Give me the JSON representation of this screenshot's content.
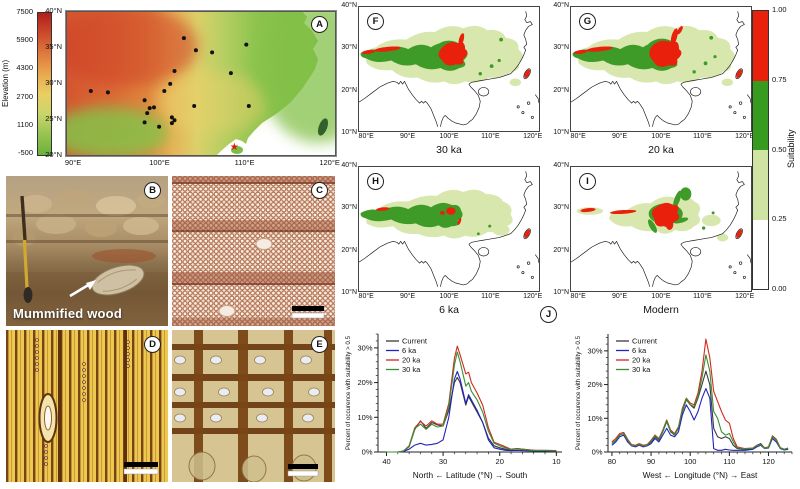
{
  "letters": {
    "a": "A",
    "b": "B",
    "c": "C",
    "d": "D",
    "e": "E",
    "j": "J"
  },
  "panel_a": {
    "colorbar": {
      "label": "Elevation (m)",
      "ticks": [
        "7500",
        "5900",
        "4300",
        "2700",
        "1100",
        "-500"
      ],
      "gradient": [
        "#b11f1d",
        "#cc4a2b",
        "#de7a3d",
        "#e9a84f",
        "#e9cf63",
        "#c9d56b",
        "#97c350",
        "#68b23c"
      ]
    },
    "yticks": [
      "40°N",
      "35°N",
      "30°N",
      "25°N",
      "20°N"
    ],
    "xticks": [
      "90°E",
      "100°E",
      "110°E",
      "120°E"
    ],
    "lon_range": [
      89,
      120.6
    ],
    "lat_range": [
      20,
      40.3
    ],
    "sites": [
      [
        102.8,
        36.5
      ],
      [
        110.1,
        35.6
      ],
      [
        104.2,
        34.8
      ],
      [
        106.1,
        34.5
      ],
      [
        101.7,
        31.9
      ],
      [
        108.3,
        31.6
      ],
      [
        91.9,
        29.1
      ],
      [
        93.9,
        28.9
      ],
      [
        101.2,
        30.1
      ],
      [
        100.5,
        29.1
      ],
      [
        98.2,
        27.8
      ],
      [
        104.0,
        27.0
      ],
      [
        110.4,
        27.0
      ],
      [
        98.8,
        26.7
      ],
      [
        99.3,
        26.8
      ],
      [
        98.5,
        26.0
      ],
      [
        98.2,
        24.7
      ],
      [
        101.4,
        25.4
      ],
      [
        101.7,
        25.0
      ],
      [
        99.9,
        24.1
      ],
      [
        101.4,
        24.6
      ]
    ],
    "star_site": [
      108.7,
      21.3
    ]
  },
  "panel_b": {
    "caption": "Mummified wood"
  },
  "suitability": {
    "colorbar": {
      "label": "Suitability",
      "ticks": [
        "1.00",
        "0.75",
        "0.50",
        "0.25",
        "0.00"
      ],
      "segment_colors": [
        "#e8200c",
        "#379b1f",
        "#cfe3a2",
        "#ffffff"
      ]
    },
    "yticks": [
      "40°N",
      "30°N",
      "20°N",
      "10°N"
    ],
    "xticks": [
      "80°E",
      "90°E",
      "100°E",
      "110°E",
      "120°E"
    ],
    "panels": [
      {
        "label": "F",
        "caption": "30 ka"
      },
      {
        "label": "G",
        "caption": "20 ka"
      },
      {
        "label": "H",
        "caption": "6 ka"
      },
      {
        "label": "I",
        "caption": "Modern"
      }
    ]
  },
  "chart_data": [
    {
      "type": "line",
      "title": "",
      "ylabel": "Percent of occurence with suitability > 0.5",
      "xlabel": "North  ←  Latitude  (°N)  →  South",
      "xdomain": [
        41.5,
        9
      ],
      "ylim": [
        0,
        34
      ],
      "xticks": [
        40,
        30,
        20,
        10
      ],
      "yticks": [
        0,
        10,
        20,
        30
      ],
      "ytick_labels": [
        "0%",
        "10%",
        "20%",
        "30%"
      ],
      "xminor": 2,
      "yminor": 2,
      "legend_position": "top-left",
      "x": [
        40,
        38,
        37,
        36,
        35,
        34,
        33,
        32,
        31,
        30,
        29,
        28,
        27.5,
        27,
        26,
        25.5,
        25,
        24,
        23,
        22,
        21,
        20,
        19,
        18,
        17,
        16,
        14,
        12,
        10
      ],
      "series": [
        {
          "name": "Current",
          "color": "#3a3a3a",
          "values": [
            0,
            0,
            0.3,
            1.5,
            6.5,
            9,
            6.8,
            8.5,
            7.8,
            7.5,
            12,
            20,
            21.5,
            20,
            13.5,
            16,
            14.5,
            11.5,
            8.5,
            4,
            1.8,
            1.2,
            0.8,
            0.6,
            1,
            0.8,
            0.5,
            0.3,
            0.3
          ]
        },
        {
          "name": "6 ka",
          "color": "#2222c0",
          "values": [
            0,
            0,
            0.2,
            0.8,
            2,
            2.5,
            2,
            2.2,
            2.5,
            3.5,
            10,
            21,
            23.2,
            21,
            14,
            16.5,
            15,
            12,
            8.5,
            3.5,
            1.2,
            0.8,
            0.5,
            0.4,
            0.5,
            0.4,
            0.3,
            0.3,
            0.2
          ]
        },
        {
          "name": "20 ka",
          "color": "#d02a1e",
          "values": [
            0,
            0,
            0.3,
            1.8,
            7,
            8.8,
            7.5,
            9,
            8,
            8,
            14,
            27,
            30.5,
            28,
            22.5,
            23,
            20,
            17,
            13.5,
            7,
            2.8,
            2.2,
            1.5,
            0.8,
            1,
            0.8,
            0.5,
            0.5,
            0.4
          ]
        },
        {
          "name": "30 ka",
          "color": "#3a8f33",
          "values": [
            0,
            0,
            0.3,
            1.6,
            6.8,
            8,
            6.5,
            8,
            7.2,
            7.5,
            13,
            25,
            28.8,
            26,
            19,
            20,
            17.5,
            15,
            11.5,
            6,
            2.5,
            1.8,
            1.2,
            0.7,
            0.9,
            0.7,
            0.4,
            0.4,
            0.3
          ]
        }
      ]
    },
    {
      "type": "line",
      "title": "",
      "ylabel": "Percent of occurence with suitability > 0.5",
      "xlabel": "West  ←  Longitude  (°N)  →  East",
      "xdomain": [
        79,
        126
      ],
      "ylim": [
        0,
        35
      ],
      "xticks": [
        80,
        90,
        100,
        110,
        120
      ],
      "yticks": [
        0,
        10,
        20,
        30
      ],
      "ytick_labels": [
        "0%",
        "10%",
        "20%",
        "30%"
      ],
      "xminor": 2,
      "yminor": 2,
      "legend_position": "top-left",
      "x": [
        80,
        81,
        82,
        83,
        84,
        85,
        86,
        87,
        88,
        89,
        90,
        91,
        92,
        93,
        94,
        95,
        96,
        97,
        98,
        99,
        100,
        101,
        102,
        103,
        104,
        105,
        106,
        107,
        108,
        109,
        110,
        111,
        112,
        114,
        116,
        117,
        118,
        119,
        120,
        121,
        122,
        123,
        124,
        125
      ],
      "series": [
        {
          "name": "Current",
          "color": "#3a3a3a",
          "values": [
            2.5,
            3.5,
            5,
            5.5,
            3.5,
            2,
            1.8,
            2.2,
            1.8,
            2,
            3,
            4.5,
            3.5,
            6,
            9,
            6,
            5,
            7,
            12,
            15.5,
            14,
            13,
            16,
            20,
            24,
            20,
            7,
            4.5,
            4,
            4.5,
            4,
            2,
            1,
            0.8,
            1,
            2,
            2.5,
            1.2,
            1.5,
            4.5,
            3.5,
            1.2,
            0.8,
            1
          ]
        },
        {
          "name": "6 ka",
          "color": "#2222c0",
          "values": [
            2,
            3,
            4.5,
            5,
            3,
            1.8,
            1.5,
            2,
            1.5,
            1.8,
            2.5,
            4,
            3,
            5,
            7,
            5,
            4.5,
            6,
            11,
            14,
            12,
            9.5,
            12,
            16,
            18.8,
            16,
            1,
            0.5,
            0.5,
            0.8,
            0.6,
            0.5,
            0.5,
            0.5,
            0.8,
            1.5,
            2,
            1,
            1.2,
            4,
            3,
            1,
            0.6,
            0.8
          ]
        },
        {
          "name": "20 ka",
          "color": "#d02a1e",
          "values": [
            3,
            4,
            5.5,
            5.8,
            3.8,
            2.2,
            2,
            2.5,
            2,
            2.2,
            3.5,
            5,
            4,
            6.5,
            9.5,
            6.5,
            5.5,
            7.5,
            13,
            16,
            14.5,
            14,
            17.5,
            24,
            33.5,
            28,
            18,
            15,
            12,
            9.5,
            8.5,
            4,
            1.5,
            1,
            1.2,
            2,
            2.2,
            1.2,
            1.5,
            4.8,
            3.8,
            1.3,
            0.8,
            1.2
          ]
        },
        {
          "name": "30 ka",
          "color": "#3a8f33",
          "values": [
            2.5,
            3.5,
            5,
            5.5,
            3.5,
            2,
            1.8,
            2.2,
            1.8,
            2,
            3.2,
            4.8,
            3.8,
            6.2,
            9.2,
            6.2,
            5.2,
            7.2,
            12.5,
            15.8,
            14,
            13.5,
            16.5,
            22,
            28.8,
            24,
            12,
            10,
            6,
            5,
            5.5,
            3,
            1.2,
            1,
            1.1,
            2,
            2.1,
            1.1,
            1.4,
            4.6,
            3.6,
            1.2,
            0.8,
            1.1
          ]
        }
      ]
    }
  ]
}
